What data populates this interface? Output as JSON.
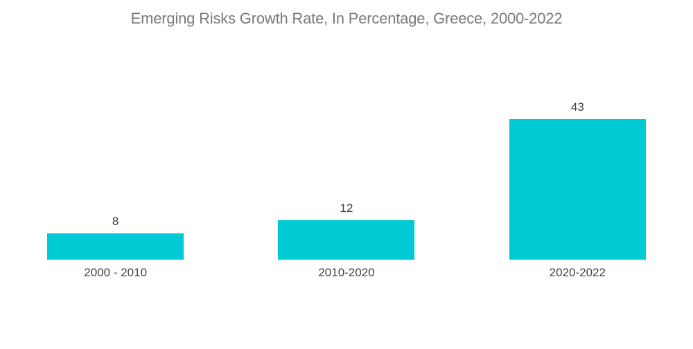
{
  "title": "Emerging Risks Growth Rate, In Percentage, Greece, 2000-2022",
  "colors": {
    "bar": "#00CBD4",
    "title_text": "#7a7a7a",
    "label_text": "#404040",
    "background": "#ffffff"
  },
  "chart_data": {
    "type": "bar",
    "title": "Emerging Risks Growth Rate, In Percentage, Greece, 2000-2022",
    "categories": [
      "2000 - 2010",
      "2010-2020",
      "2020-2022"
    ],
    "values": [
      8,
      12,
      43
    ],
    "xlabel": "",
    "ylabel": "",
    "ylim": [
      0,
      43
    ],
    "grid": false,
    "legend": false,
    "data_labels": true,
    "bar_color": "#00CBD4",
    "orientation": "vertical"
  }
}
